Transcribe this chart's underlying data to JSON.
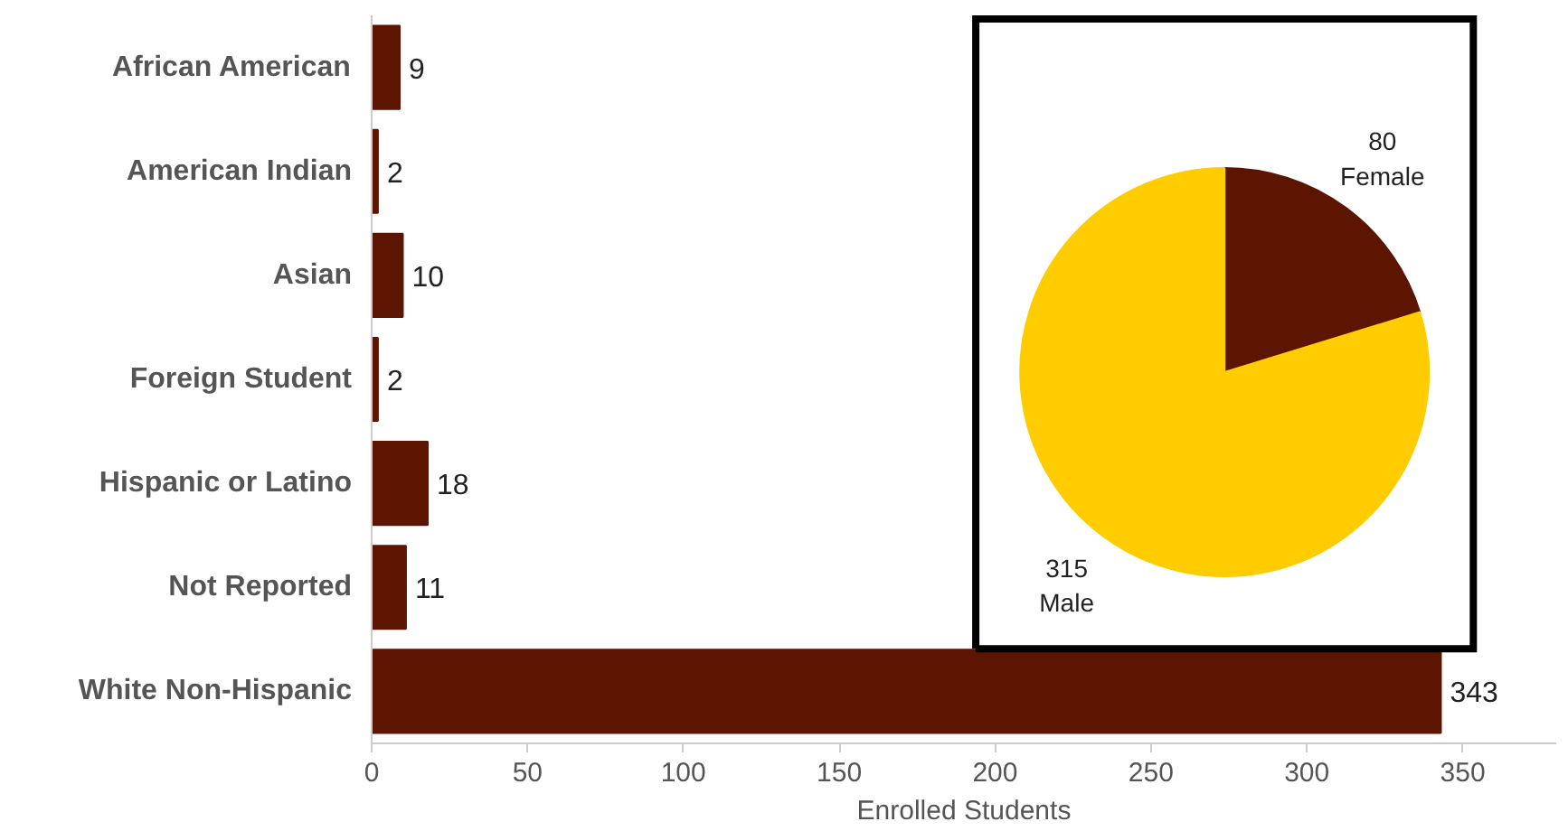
{
  "chart_data": [
    {
      "type": "bar",
      "orientation": "horizontal",
      "categories": [
        "African American",
        "American Indian",
        "Asian",
        "Foreign Student",
        "Hispanic or Latino",
        "Not Reported",
        "White Non-Hispanic"
      ],
      "values": [
        9,
        2,
        10,
        2,
        18,
        11,
        343
      ],
      "color": "#5c1500",
      "xlabel": "Enrolled Students",
      "xlim": [
        0,
        380
      ],
      "xticks": [
        0,
        50,
        100,
        150,
        200,
        250,
        300,
        350
      ],
      "data_labels": true,
      "grid": false
    },
    {
      "type": "pie",
      "categories": [
        "Female",
        "Male"
      ],
      "values": [
        80,
        315
      ],
      "colors": [
        "#5c1500",
        "#ffcc00"
      ],
      "data_labels": true
    }
  ]
}
